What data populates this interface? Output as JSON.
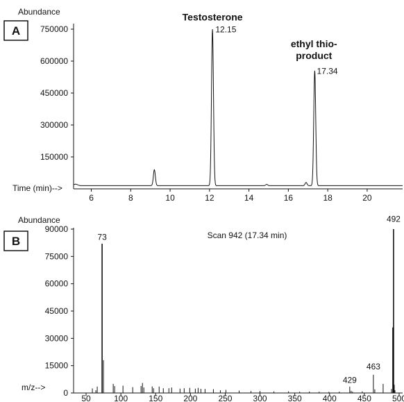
{
  "chart_data": [
    {
      "panel": "A",
      "type": "line",
      "ylabel": "Abundance",
      "xlabel": "Time (min)-->",
      "xlim": [
        5.1,
        21.8
      ],
      "ylim": [
        0,
        750000
      ],
      "xticks": [
        6,
        8,
        10,
        12,
        14,
        16,
        18,
        20
      ],
      "yticks": [
        150000,
        300000,
        450000,
        600000,
        750000
      ],
      "baseline": 15000,
      "peaks": [
        {
          "x": 5.2,
          "y": 22000,
          "w": 0.1
        },
        {
          "x": 9.2,
          "y": 90000,
          "w": 0.05
        },
        {
          "x": 12.15,
          "y": 750000,
          "w": 0.05
        },
        {
          "x": 14.9,
          "y": 21000,
          "w": 0.05
        },
        {
          "x": 16.9,
          "y": 30000,
          "w": 0.05
        },
        {
          "x": 17.34,
          "y": 555000,
          "w": 0.05
        }
      ],
      "annotations": [
        {
          "text": "Testosterone",
          "x": 12.15,
          "y": 790000,
          "bold": true
        },
        {
          "text": "ethyl thio-",
          "x": 17.3,
          "y": 665000,
          "bold": true
        },
        {
          "text": "product",
          "x": 17.3,
          "y": 610000,
          "bold": true
        },
        {
          "text": "12.15",
          "x": 12.3,
          "y": 735000,
          "bold": false
        },
        {
          "text": "17.34",
          "x": 17.45,
          "y": 540000,
          "bold": false
        }
      ]
    },
    {
      "panel": "B",
      "type": "bar",
      "ylabel": "Abundance",
      "xlabel": "m/z-->",
      "title": "Scan 942 (17.34 min)",
      "xlim": [
        32,
        505
      ],
      "ylim": [
        0,
        90000
      ],
      "xticks": [
        50,
        100,
        150,
        200,
        250,
        300,
        350,
        400,
        450,
        500
      ],
      "yticks": [
        0,
        15000,
        30000,
        45000,
        60000,
        75000,
        90000
      ],
      "x": [
        59,
        64,
        66,
        73,
        75,
        89,
        91,
        103,
        117,
        129,
        131,
        133,
        145,
        147,
        155,
        161,
        169,
        173,
        185,
        191,
        199,
        207,
        211,
        215,
        221,
        233,
        243,
        251,
        270,
        287,
        300,
        320,
        341,
        357,
        371,
        385,
        399,
        414,
        429,
        431,
        433,
        447,
        463,
        465,
        477,
        489,
        491,
        492,
        493,
        494
      ],
      "values": [
        2500,
        1500,
        3500,
        82000,
        18000,
        5000,
        3800,
        4000,
        3200,
        3800,
        5500,
        3000,
        3600,
        2600,
        3500,
        2600,
        2600,
        3000,
        2400,
        2600,
        2800,
        2400,
        2800,
        2300,
        2200,
        2100,
        1500,
        1700,
        1300,
        1100,
        1100,
        900,
        900,
        700,
        800,
        700,
        600,
        700,
        3500,
        1200,
        700,
        900,
        10000,
        2000,
        5000,
        2200,
        36000,
        90000,
        4500,
        1500
      ],
      "annotations": [
        {
          "text": "73",
          "x": 73,
          "y": 84000
        },
        {
          "text": "429",
          "x": 429,
          "y": 5500
        },
        {
          "text": "463",
          "x": 463,
          "y": 13000
        },
        {
          "text": "492",
          "x": 492,
          "y": 94000
        }
      ]
    }
  ]
}
